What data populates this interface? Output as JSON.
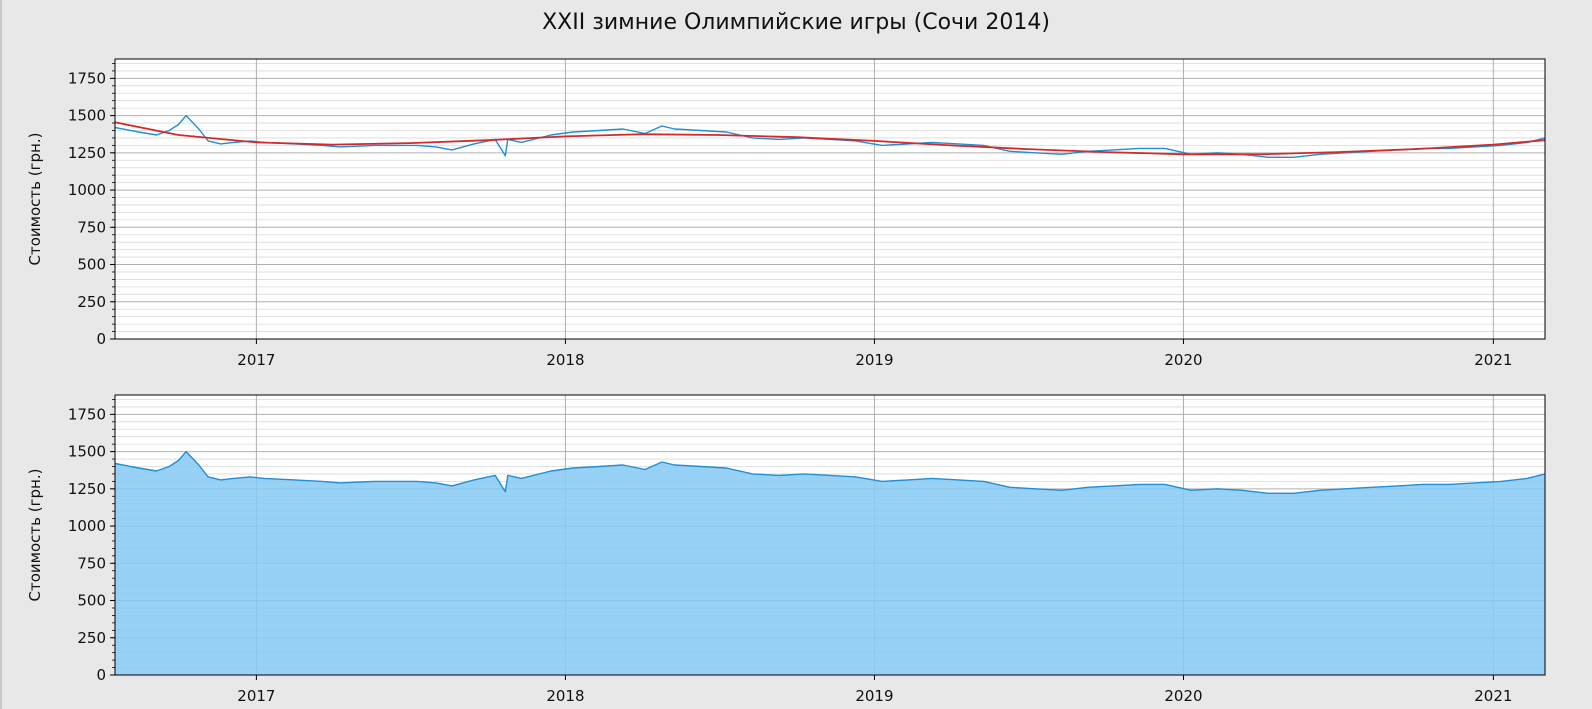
{
  "title": "XXII зимние Олимпийские игры (Сочи 2014)",
  "colors": {
    "background": "#e8e8e8",
    "line": "#1f8fd6",
    "fill": "#86c9f4",
    "trend": "#d42a2a",
    "grid_major": "#b0b0b0",
    "grid_minor": "#d9d9d9"
  },
  "chart_data": [
    {
      "type": "line",
      "xlabel": "",
      "ylabel": "Стоимость (грн.)",
      "xlim": [
        "2016-07-18",
        "2021-03-03"
      ],
      "ylim": [
        0,
        1880
      ],
      "x_ticks": [
        "2017",
        "2018",
        "2019",
        "2020",
        "2021"
      ],
      "y_ticks": [
        0,
        250,
        500,
        750,
        1000,
        1250,
        1500,
        1750
      ],
      "grid": true,
      "series": [
        {
          "kind": "price",
          "color": "#1f8fd6",
          "x": [
            "2016-07-18",
            "2016-08-15",
            "2016-09-05",
            "2016-09-20",
            "2016-10-01",
            "2016-10-10",
            "2016-10-25",
            "2016-11-05",
            "2016-11-20",
            "2016-12-05",
            "2016-12-25",
            "2017-01-10",
            "2017-02-15",
            "2017-03-20",
            "2017-04-10",
            "2017-05-20",
            "2017-07-10",
            "2017-08-01",
            "2017-08-20",
            "2017-09-15",
            "2017-10-10",
            "2017-10-22",
            "2017-10-25",
            "2017-11-10",
            "2017-12-15",
            "2018-01-10",
            "2018-02-10",
            "2018-03-10",
            "2018-04-05",
            "2018-04-25",
            "2018-05-10",
            "2018-06-10",
            "2018-07-10",
            "2018-08-10",
            "2018-09-10",
            "2018-10-10",
            "2018-11-10",
            "2018-12-10",
            "2019-01-10",
            "2019-02-10",
            "2019-03-10",
            "2019-04-10",
            "2019-05-10",
            "2019-06-10",
            "2019-07-10",
            "2019-08-10",
            "2019-09-10",
            "2019-10-10",
            "2019-11-10",
            "2019-12-10",
            "2020-01-10",
            "2020-02-10",
            "2020-03-10",
            "2020-04-10",
            "2020-05-10",
            "2020-06-10",
            "2020-07-10",
            "2020-08-10",
            "2020-09-10",
            "2020-10-10",
            "2020-11-10",
            "2020-12-10",
            "2021-01-10",
            "2021-02-10",
            "2021-03-03"
          ],
          "y": [
            1420,
            1390,
            1370,
            1400,
            1440,
            1500,
            1410,
            1330,
            1310,
            1320,
            1330,
            1320,
            1310,
            1300,
            1290,
            1300,
            1300,
            1290,
            1270,
            1310,
            1340,
            1230,
            1340,
            1320,
            1370,
            1390,
            1400,
            1410,
            1380,
            1430,
            1410,
            1400,
            1390,
            1350,
            1340,
            1350,
            1340,
            1330,
            1300,
            1310,
            1320,
            1310,
            1300,
            1260,
            1250,
            1240,
            1260,
            1270,
            1280,
            1280,
            1240,
            1250,
            1240,
            1220,
            1220,
            1240,
            1250,
            1260,
            1270,
            1280,
            1280,
            1290,
            1300,
            1320,
            1350
          ]
        },
        {
          "kind": "trend",
          "color": "#d42a2a",
          "x": [
            "2016-07-18",
            "2016-10-01",
            "2017-01-01",
            "2017-04-01",
            "2017-07-01",
            "2017-10-01",
            "2018-01-01",
            "2018-04-01",
            "2018-07-01",
            "2018-10-01",
            "2019-01-01",
            "2019-04-01",
            "2019-07-01",
            "2019-10-01",
            "2020-01-01",
            "2020-04-01",
            "2020-07-01",
            "2020-10-01",
            "2021-01-01",
            "2021-03-03"
          ],
          "y": [
            1455,
            1370,
            1320,
            1305,
            1315,
            1335,
            1360,
            1375,
            1370,
            1355,
            1330,
            1300,
            1275,
            1255,
            1240,
            1240,
            1255,
            1275,
            1305,
            1335
          ]
        }
      ]
    },
    {
      "type": "area",
      "xlabel": "",
      "ylabel": "Стоимость (грн.)",
      "xlim": [
        "2016-07-18",
        "2021-03-03"
      ],
      "ylim": [
        0,
        1880
      ],
      "x_ticks": [
        "2017",
        "2018",
        "2019",
        "2020",
        "2021"
      ],
      "y_ticks": [
        0,
        250,
        500,
        750,
        1000,
        1250,
        1500,
        1750
      ],
      "grid": true,
      "series": [
        {
          "kind": "price",
          "color": "#1f8fd6",
          "fill": "#86c9f4",
          "x": [
            "2016-07-18",
            "2016-08-15",
            "2016-09-05",
            "2016-09-20",
            "2016-10-01",
            "2016-10-10",
            "2016-10-25",
            "2016-11-05",
            "2016-11-20",
            "2016-12-05",
            "2016-12-25",
            "2017-01-10",
            "2017-02-15",
            "2017-03-20",
            "2017-04-10",
            "2017-05-20",
            "2017-07-10",
            "2017-08-01",
            "2017-08-20",
            "2017-09-15",
            "2017-10-10",
            "2017-10-22",
            "2017-10-25",
            "2017-11-10",
            "2017-12-15",
            "2018-01-10",
            "2018-02-10",
            "2018-03-10",
            "2018-04-05",
            "2018-04-25",
            "2018-05-10",
            "2018-06-10",
            "2018-07-10",
            "2018-08-10",
            "2018-09-10",
            "2018-10-10",
            "2018-11-10",
            "2018-12-10",
            "2019-01-10",
            "2019-02-10",
            "2019-03-10",
            "2019-04-10",
            "2019-05-10",
            "2019-06-10",
            "2019-07-10",
            "2019-08-10",
            "2019-09-10",
            "2019-10-10",
            "2019-11-10",
            "2019-12-10",
            "2020-01-10",
            "2020-02-10",
            "2020-03-10",
            "2020-04-10",
            "2020-05-10",
            "2020-06-10",
            "2020-07-10",
            "2020-08-10",
            "2020-09-10",
            "2020-10-10",
            "2020-11-10",
            "2020-12-10",
            "2021-01-10",
            "2021-02-10",
            "2021-03-03"
          ],
          "y": [
            1420,
            1390,
            1370,
            1400,
            1440,
            1500,
            1410,
            1330,
            1310,
            1320,
            1330,
            1320,
            1310,
            1300,
            1290,
            1300,
            1300,
            1290,
            1270,
            1310,
            1340,
            1230,
            1340,
            1320,
            1370,
            1390,
            1400,
            1410,
            1380,
            1430,
            1410,
            1400,
            1390,
            1350,
            1340,
            1350,
            1340,
            1330,
            1300,
            1310,
            1320,
            1310,
            1300,
            1260,
            1250,
            1240,
            1260,
            1270,
            1280,
            1280,
            1240,
            1250,
            1240,
            1220,
            1220,
            1240,
            1250,
            1260,
            1270,
            1280,
            1280,
            1290,
            1300,
            1320,
            1350
          ]
        }
      ]
    }
  ]
}
